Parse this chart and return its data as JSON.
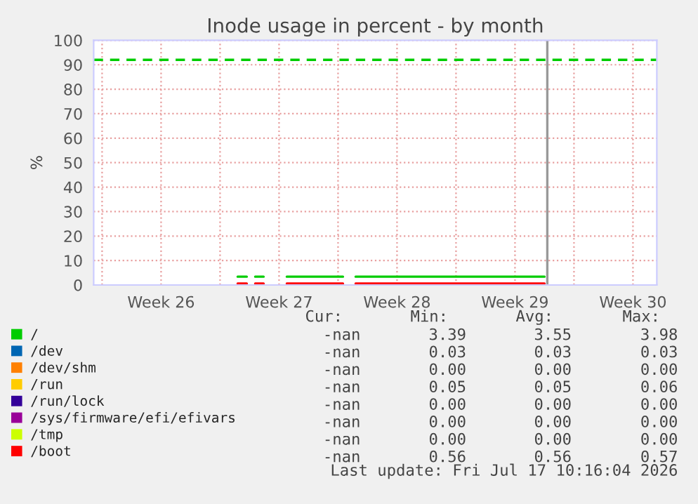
{
  "chart_data": {
    "type": "line",
    "title": "Inode usage in percent - by month",
    "ylabel": "%",
    "xlim": [
      "2026-06-21T12:00",
      "2026-07-24T22:00"
    ],
    "ylim": [
      0,
      100
    ],
    "xticks": [
      {
        "value": "2026-06-22",
        "label": null
      },
      {
        "value": "2026-06-25T12:00",
        "label": "Week 26"
      },
      {
        "value": "2026-06-29",
        "label": null
      },
      {
        "value": "2026-07-02T12:00",
        "label": "Week 27"
      },
      {
        "value": "2026-07-06",
        "label": null
      },
      {
        "value": "2026-07-09T12:00",
        "label": "Week 28"
      },
      {
        "value": "2026-07-13",
        "label": null
      },
      {
        "value": "2026-07-16T12:00",
        "label": "Week 29"
      },
      {
        "value": "2026-07-20",
        "label": null
      },
      {
        "value": "2026-07-23T12:00",
        "label": "Week 30"
      }
    ],
    "yticks": [
      0,
      10,
      20,
      30,
      40,
      50,
      60,
      70,
      80,
      90,
      100
    ],
    "grid": true,
    "legend": "bottom",
    "marker": "none",
    "line_style": "solid",
    "series": [
      {
        "name": "/",
        "color": "#00cc00",
        "x": [
          "2026-06-30T01:00",
          "2026-06-30T14:00",
          "2026-06-30T19:00",
          "2026-07-01T02:00",
          "2026-07-01T14:00",
          "2026-07-02T05:00",
          "2026-07-02T23:00",
          "2026-07-06T07:00",
          "2026-07-06T14:00",
          "2026-07-07T01:00",
          "2026-07-18T06:00"
        ],
        "values": [
          3.4,
          3.4,
          null,
          3.4,
          3.4,
          null,
          3.4,
          3.4,
          null,
          3.4,
          3.4
        ]
      },
      {
        "name": "/dev",
        "color": "#0066b3"
      },
      {
        "name": "/dev/shm",
        "color": "#ff8000"
      },
      {
        "name": "/run",
        "color": "#ffcc00"
      },
      {
        "name": "/run/lock",
        "color": "#330099"
      },
      {
        "name": "/sys/firmware/efi/efivars",
        "color": "#990099"
      },
      {
        "name": "/tmp",
        "color": "#ccff00"
      },
      {
        "name": "/boot",
        "color": "#ff0000",
        "x": [
          "2026-06-30T01:00",
          "2026-06-30T14:00",
          "2026-06-30T19:00",
          "2026-07-01T02:00",
          "2026-07-01T14:00",
          "2026-07-02T05:00",
          "2026-07-02T23:00",
          "2026-07-06T07:00",
          "2026-07-06T14:00",
          "2026-07-07T01:00",
          "2026-07-18T06:00"
        ],
        "values": [
          0.6,
          0.6,
          null,
          0.6,
          0.6,
          null,
          0.6,
          0.6,
          null,
          0.6,
          0.6
        ]
      }
    ],
    "ref_lines": [
      {
        "axis": "y",
        "value": 92,
        "color": "#00cc00",
        "line_style": "dashed"
      },
      {
        "axis": "x",
        "value": "2026-07-18T10:00",
        "color": "#999999",
        "line_style": "solid"
      }
    ],
    "annotations": [
      "Cur:",
      "Min:",
      "Avg:",
      "Max:",
      "-nan",
      "3.39",
      "3.55",
      "3.98",
      "-nan",
      "0.03",
      "0.03",
      "0.03",
      "-nan",
      "0.00",
      "0.00",
      "0.00",
      "-nan",
      "0.05",
      "0.05",
      "0.06",
      "-nan",
      "0.00",
      "0.00",
      "0.00",
      "-nan",
      "0.00",
      "0.00",
      "0.00",
      "-nan",
      "0.00",
      "0.00",
      "0.00",
      "-nan",
      "0.56",
      "0.56",
      "0.57",
      "Last update: Fri Jul 17 10:16:04 2026"
    ]
  }
}
